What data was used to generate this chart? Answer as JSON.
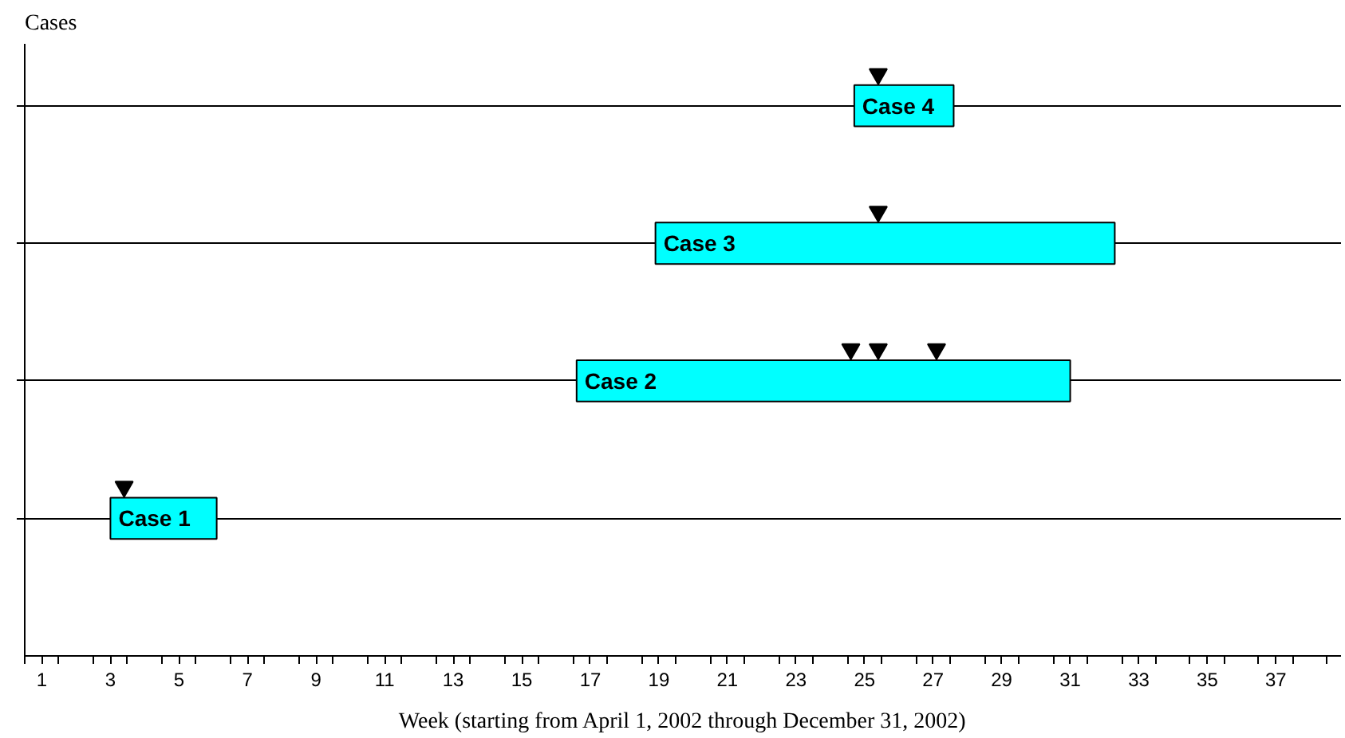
{
  "chart_data": {
    "type": "bar",
    "orientation": "horizontal",
    "xlabel": "Week (starting from April 1, 2002 through December 31, 2002)",
    "ylabel": "Cases",
    "categories": [
      "Case 4",
      "Case 3",
      "Case 2",
      "Case 1",
      null
    ],
    "series": [
      {
        "color": "#00ffff",
        "base": [
          24.7,
          18.9,
          16.6,
          3.0,
          null
        ],
        "values": [
          2.9,
          13.4,
          14.4,
          3.1,
          null
        ]
      },
      {
        "type": "scatter",
        "marker": "triangle",
        "color": "#000000",
        "values": [
          25.4,
          25.4,
          24.6,
          3.4,
          null
        ]
      },
      {
        "type": "scatter",
        "marker": "triangle",
        "color": "#000000",
        "values": [
          null,
          null,
          25.4,
          null,
          null
        ]
      },
      {
        "type": "scatter",
        "marker": "triangle",
        "color": "#000000",
        "values": [
          null,
          null,
          27.1,
          null,
          null
        ]
      }
    ],
    "xlim": [
      0.5,
      38.9
    ],
    "xticks": [
      {
        "value": 0.5,
        "label": null
      },
      1,
      {
        "value": 1.5,
        "label": null
      },
      {
        "value": 2.5,
        "label": null
      },
      3,
      {
        "value": 3.5,
        "label": null
      },
      {
        "value": 4.5,
        "label": null
      },
      5,
      {
        "value": 5.5,
        "label": null
      },
      {
        "value": 6.5,
        "label": null
      },
      7,
      {
        "value": 7.5,
        "label": null
      },
      {
        "value": 8.5,
        "label": null
      },
      9,
      {
        "value": 9.5,
        "label": null
      },
      {
        "value": 10.5,
        "label": null
      },
      11,
      {
        "value": 11.5,
        "label": null
      },
      {
        "value": 12.5,
        "label": null
      },
      13,
      {
        "value": 13.5,
        "label": null
      },
      {
        "value": 14.5,
        "label": null
      },
      15,
      {
        "value": 15.5,
        "label": null
      },
      {
        "value": 16.5,
        "label": null
      },
      17,
      {
        "value": 17.5,
        "label": null
      },
      {
        "value": 18.5,
        "label": null
      },
      19,
      {
        "value": 19.5,
        "label": null
      },
      {
        "value": 20.5,
        "label": null
      },
      21,
      {
        "value": 21.5,
        "label": null
      },
      {
        "value": 22.5,
        "label": null
      },
      23,
      {
        "value": 23.5,
        "label": null
      },
      {
        "value": 24.5,
        "label": null
      },
      25,
      {
        "value": 25.5,
        "label": null
      },
      {
        "value": 26.5,
        "label": null
      },
      27,
      {
        "value": 27.5,
        "label": null
      },
      {
        "value": 28.5,
        "label": null
      },
      29,
      {
        "value": 29.5,
        "label": null
      },
      {
        "value": 30.5,
        "label": null
      },
      31,
      {
        "value": 31.5,
        "label": null
      },
      {
        "value": 32.5,
        "label": null
      },
      33,
      {
        "value": 33.5,
        "label": null
      },
      {
        "value": 34.5,
        "label": null
      },
      35,
      {
        "value": 35.5,
        "label": null
      },
      {
        "value": 36.5,
        "label": null
      },
      37,
      {
        "value": 37.5,
        "label": null
      },
      {
        "value": 38.5,
        "label": null
      }
    ],
    "grid": "y",
    "tick_labels": "x"
  }
}
